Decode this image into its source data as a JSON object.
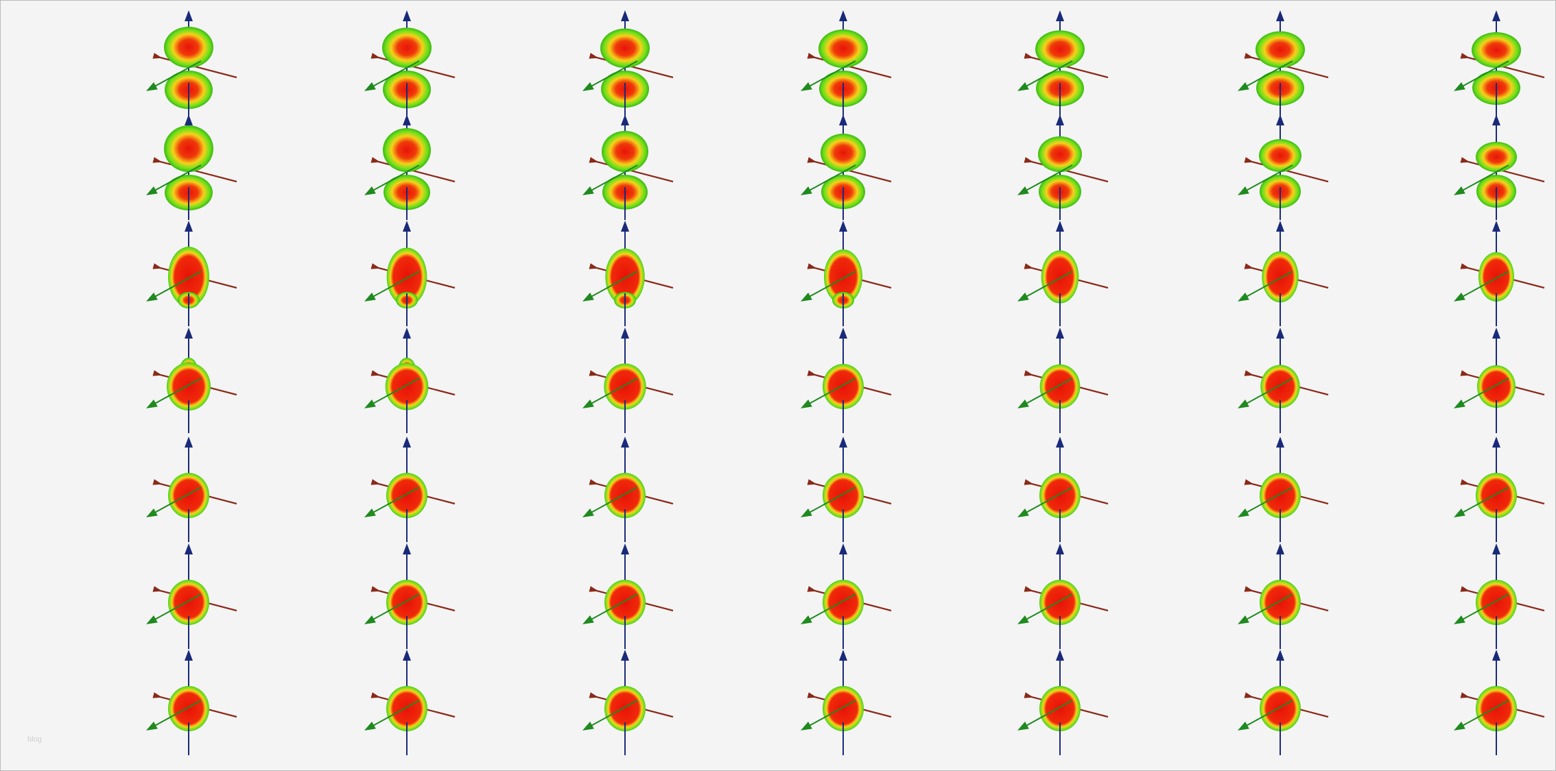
{
  "watermark": "blog"
}
